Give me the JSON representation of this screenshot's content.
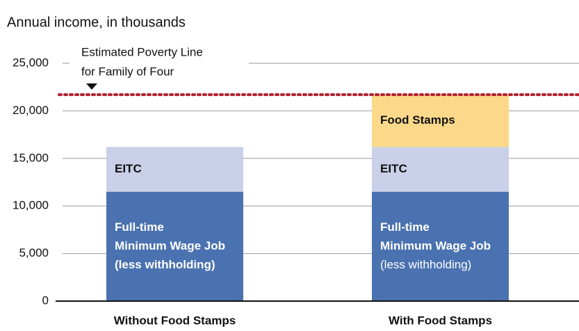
{
  "chart_data": {
    "type": "bar",
    "stacked": true,
    "title": "Annual income, in thousands",
    "categories": [
      "Without Food Stamps",
      "With Food Stamps"
    ],
    "series": [
      {
        "label_lines": [
          "Full-time",
          "Minimum Wage Job",
          "(less withholding)"
        ],
        "color": "#4a72b0",
        "values": [
          11500,
          11500
        ]
      },
      {
        "label_lines": [
          "EITC"
        ],
        "color": "#c9d0e8",
        "values": [
          4700,
          4700
        ]
      },
      {
        "label_lines": [
          "Food Stamps"
        ],
        "color": "#fcd98a",
        "values": [
          null,
          5500
        ]
      }
    ],
    "reference_line": {
      "value": 21700,
      "label_lines": [
        "Estimated Poverty Line",
        "for Family of Four"
      ],
      "color": "#b22030"
    },
    "ylim": [
      0,
      25000
    ],
    "yticks": [
      0,
      {
        "value": 5000,
        "label": "5,000"
      },
      {
        "value": 10000,
        "label": "10,000"
      },
      {
        "value": 15000,
        "label": "15,000"
      },
      {
        "value": 20000,
        "label": "20,000"
      },
      {
        "value": 25000,
        "label": "25,000"
      }
    ],
    "grid": true
  }
}
